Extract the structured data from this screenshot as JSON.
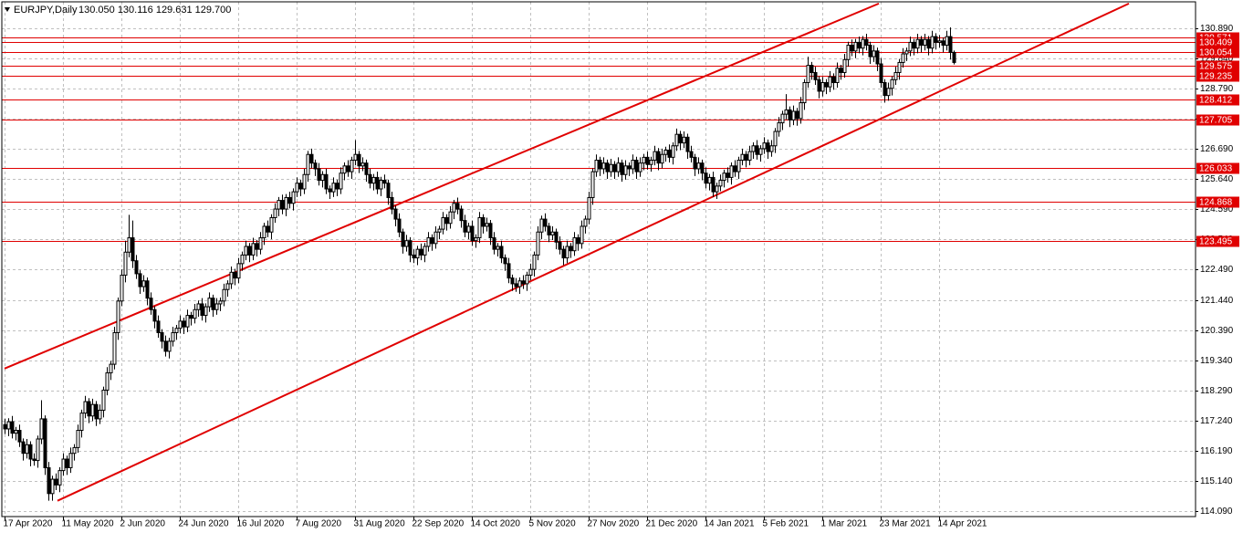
{
  "chart_data": {
    "type": "candlestick",
    "title": "EURJPY,Daily",
    "quote": "130.050 130.116 129.631 129.700",
    "grid": true,
    "color": "#000000",
    "level_color": "#e00000",
    "xlim": [
      -0.75,
      326.25
    ],
    "ylim": [
      113.9,
      131.81
    ],
    "yticks": [
      {
        "value": 130.89,
        "label": "130.890"
      },
      {
        "value": 129.84,
        "label": "129.840"
      },
      {
        "value": 128.79,
        "label": "128.790"
      },
      {
        "value": 127.74,
        "label": "127.740"
      },
      {
        "value": 126.69,
        "label": "126.690"
      },
      {
        "value": 125.64,
        "label": "125.640"
      },
      {
        "value": 124.59,
        "label": "124.590"
      },
      {
        "value": 123.54,
        "label": "123.540"
      },
      {
        "value": 122.49,
        "label": "122.490"
      },
      {
        "value": 121.44,
        "label": "121.440"
      },
      {
        "value": 120.39,
        "label": "120.390"
      },
      {
        "value": 119.34,
        "label": "119.340"
      },
      {
        "value": 118.29,
        "label": "118.290"
      },
      {
        "value": 117.24,
        "label": "117.240"
      },
      {
        "value": 116.19,
        "label": "116.190"
      },
      {
        "value": 115.14,
        "label": "115.140"
      },
      {
        "value": 114.09,
        "label": "114.090"
      }
    ],
    "xticks": [
      {
        "value": 0,
        "label": "17 Apr 2020"
      },
      {
        "value": 16,
        "label": "11 May 2020"
      },
      {
        "value": 32,
        "label": "2 Jun 2020"
      },
      {
        "value": 48,
        "label": "24 Jun 2020"
      },
      {
        "value": 64,
        "label": "16 Jul 2020"
      },
      {
        "value": 80,
        "label": "7 Aug 2020"
      },
      {
        "value": 96,
        "label": "31 Aug 2020"
      },
      {
        "value": 112,
        "label": "22 Sep 2020"
      },
      {
        "value": 128,
        "label": "14 Oct 2020"
      },
      {
        "value": 144,
        "label": "5 Nov 2020"
      },
      {
        "value": 160,
        "label": "27 Nov 2020"
      },
      {
        "value": 176,
        "label": "21 Dec 2020"
      },
      {
        "value": 192,
        "label": "14 Jan 2021"
      },
      {
        "value": 208,
        "label": "5 Feb 2021"
      },
      {
        "value": 224,
        "label": "1 Mar 2021"
      },
      {
        "value": 240,
        "label": "23 Mar 2021"
      },
      {
        "value": 256,
        "label": "14 Apr 2021"
      }
    ],
    "levels": [
      130.571,
      130.409,
      130.054,
      129.575,
      129.235,
      128.412,
      127.705,
      126.033,
      124.868,
      123.495
    ],
    "trendlines": [
      {
        "x": [
          0,
          239.5
        ],
        "values": [
          119.05,
          131.75
        ]
      },
      {
        "x": [
          14.5,
          308
        ],
        "values": [
          114.45,
          131.75
        ]
      }
    ],
    "open": [
      117.1,
      116.95,
      117.2,
      116.8,
      116.9,
      116.5,
      116.1,
      116.4,
      115.9,
      115.85,
      116.6,
      117.3,
      115.6,
      114.7,
      115.2,
      115.0,
      115.5,
      115.9,
      115.6,
      116.1,
      116.3,
      116.9,
      117.5,
      117.9,
      117.4,
      117.8,
      117.3,
      117.6,
      118.3,
      118.9,
      119.2,
      120.3,
      121.4,
      122.3,
      123.1,
      123.6,
      122.8,
      122.35,
      121.9,
      122.1,
      121.5,
      121.1,
      120.7,
      120.3,
      120.0,
      119.65,
      120.0,
      120.3,
      120.45,
      120.7,
      120.5,
      120.9,
      120.8,
      121.1,
      121.3,
      120.9,
      121.2,
      121.5,
      121.1,
      121.3,
      121.4,
      121.8,
      122.0,
      122.4,
      122.2,
      122.7,
      123.0,
      123.3,
      123.0,
      123.4,
      123.2,
      123.6,
      124.0,
      123.8,
      124.3,
      124.6,
      124.9,
      124.6,
      125.0,
      124.8,
      125.2,
      125.5,
      125.3,
      125.8,
      126.5,
      126.2,
      126.0,
      125.6,
      125.8,
      125.3,
      125.2,
      125.5,
      125.3,
      125.85,
      126.1,
      125.9,
      126.3,
      126.5,
      126.1,
      126.2,
      125.8,
      125.5,
      125.7,
      125.3,
      125.6,
      125.5,
      125.0,
      124.6,
      124.25,
      123.8,
      123.3,
      123.5,
      123.0,
      122.9,
      123.2,
      123.0,
      123.3,
      123.6,
      123.4,
      123.8,
      123.9,
      124.3,
      124.1,
      124.5,
      124.8,
      124.6,
      124.2,
      123.8,
      124.0,
      123.5,
      123.6,
      124.3,
      124.0,
      124.1,
      123.6,
      123.2,
      123.3,
      122.9,
      122.7,
      122.2,
      122.0,
      121.9,
      122.1,
      122.0,
      122.3,
      122.5,
      123.0,
      123.8,
      124.25,
      124.0,
      123.7,
      123.8,
      123.45,
      123.2,
      122.9,
      123.3,
      123.15,
      123.6,
      123.4,
      124.0,
      124.25,
      125.0,
      125.9,
      126.3,
      126.0,
      126.2,
      125.9,
      126.15,
      125.9,
      126.2,
      125.8,
      126.1,
      126.0,
      126.3,
      125.9,
      126.2,
      126.4,
      126.15,
      126.3,
      126.6,
      126.2,
      126.5,
      126.65,
      126.4,
      126.8,
      127.2,
      126.9,
      127.1,
      126.6,
      126.4,
      126.0,
      126.2,
      125.85,
      125.5,
      125.7,
      125.2,
      125.4,
      125.6,
      125.85,
      125.7,
      126.1,
      125.9,
      126.3,
      126.5,
      126.3,
      126.6,
      126.8,
      126.5,
      126.7,
      126.9,
      126.6,
      126.8,
      127.3,
      127.6,
      127.9,
      128.05,
      127.7,
      128.0,
      127.75,
      128.3,
      129.0,
      129.6,
      129.35,
      129.1,
      128.7,
      129.0,
      128.85,
      129.2,
      129.0,
      129.5,
      129.35,
      129.8,
      130.3,
      130.1,
      130.4,
      130.2,
      130.5,
      130.3,
      129.9,
      130.1,
      129.65,
      129.0,
      128.55,
      128.8,
      129.1,
      129.35,
      129.7,
      130.0,
      130.1,
      130.4,
      130.2,
      130.5,
      130.3,
      130.5,
      130.2,
      130.6,
      130.4,
      130.45,
      130.3,
      130.6,
      130.05
    ],
    "high": [
      117.3,
      117.32,
      117.4,
      117.02,
      117.1,
      116.62,
      116.6,
      116.52,
      116.1,
      116.72,
      117.95,
      117.42,
      115.8,
      115.32,
      115.4,
      115.62,
      116.1,
      116.02,
      116.3,
      116.42,
      117.1,
      117.62,
      118.1,
      118.02,
      118.0,
      117.92,
      117.8,
      118.42,
      119.1,
      119.32,
      120.5,
      121.52,
      122.5,
      123.5,
      124.4,
      124.2,
      123.0,
      122.47,
      122.3,
      122.22,
      121.7,
      121.22,
      120.9,
      120.42,
      120.2,
      120.12,
      120.5,
      120.57,
      120.9,
      120.82,
      121.1,
      121.02,
      121.3,
      121.42,
      121.5,
      121.32,
      121.7,
      121.62,
      121.5,
      121.52,
      122.0,
      122.12,
      122.6,
      122.52,
      122.9,
      123.12,
      123.5,
      123.42,
      123.6,
      123.52,
      123.8,
      124.12,
      124.2,
      124.42,
      124.8,
      125.02,
      125.1,
      125.12,
      125.2,
      125.32,
      125.7,
      125.62,
      126.0,
      126.62,
      126.7,
      126.32,
      126.2,
      125.92,
      126.0,
      125.42,
      125.7,
      125.62,
      126.05,
      126.22,
      126.3,
      126.42,
      127.0,
      126.62,
      126.4,
      126.32,
      126.0,
      125.82,
      125.9,
      125.72,
      125.8,
      125.62,
      125.2,
      124.72,
      124.45,
      123.92,
      123.7,
      123.62,
      123.2,
      123.32,
      123.4,
      123.42,
      123.8,
      123.72,
      124.0,
      124.02,
      124.5,
      124.42,
      124.7,
      124.92,
      125.0,
      124.72,
      124.4,
      124.12,
      124.2,
      123.72,
      124.5,
      124.42,
      124.3,
      124.22,
      123.8,
      123.42,
      123.5,
      123.02,
      122.9,
      122.32,
      122.2,
      122.22,
      122.3,
      122.42,
      122.7,
      123.12,
      124.0,
      124.37,
      124.45,
      124.12,
      124.0,
      123.92,
      123.65,
      123.32,
      123.5,
      123.42,
      123.8,
      123.72,
      124.2,
      124.37,
      125.2,
      126.02,
      126.5,
      126.42,
      126.4,
      126.32,
      126.35,
      126.27,
      126.4,
      126.32,
      126.3,
      126.22,
      126.5,
      126.42,
      126.4,
      126.52,
      126.6,
      126.42,
      126.8,
      126.72,
      126.7,
      126.77,
      126.85,
      126.92,
      127.4,
      127.32,
      127.3,
      127.22,
      126.8,
      126.52,
      126.4,
      126.32,
      126.05,
      125.82,
      125.9,
      125.52,
      125.8,
      125.97,
      126.05,
      126.22,
      126.3,
      126.42,
      126.7,
      126.62,
      126.8,
      126.92,
      127.0,
      126.82,
      127.1,
      127.02,
      127.0,
      127.42,
      127.8,
      128.02,
      128.6,
      128.17,
      128.2,
      128.12,
      128.5,
      129.12,
      129.9,
      129.72,
      129.55,
      129.22,
      129.2,
      129.12,
      129.4,
      129.32,
      129.7,
      129.62,
      130.0,
      130.42,
      130.5,
      130.52,
      130.6,
      130.62,
      130.7,
      130.42,
      130.3,
      130.22,
      129.85,
      129.12,
      129.0,
      129.22,
      129.55,
      129.82,
      130.2,
      130.22,
      130.6,
      130.52,
      130.7,
      130.62,
      130.7,
      130.62,
      130.8,
      130.72,
      130.65,
      130.57,
      130.8,
      130.92,
      130.116
    ],
    "low": [
      116.77,
      116.7,
      116.62,
      116.55,
      116.32,
      115.85,
      115.92,
      115.65,
      115.67,
      115.6,
      116.42,
      115.35,
      114.45,
      114.45,
      114.82,
      114.75,
      115.32,
      115.35,
      115.42,
      115.85,
      116.12,
      116.65,
      117.32,
      117.15,
      117.22,
      117.05,
      117.12,
      117.35,
      118.12,
      118.65,
      119.02,
      120.05,
      121.22,
      122.05,
      122.92,
      122.55,
      122.17,
      121.65,
      121.72,
      121.25,
      120.92,
      120.45,
      120.12,
      119.75,
      119.47,
      119.4,
      119.82,
      120.05,
      120.27,
      120.25,
      120.32,
      120.55,
      120.62,
      120.85,
      120.72,
      120.65,
      121.02,
      120.85,
      120.92,
      121.05,
      121.22,
      121.55,
      121.82,
      121.95,
      122.02,
      122.45,
      122.82,
      122.75,
      122.82,
      122.95,
      123.02,
      123.35,
      123.62,
      123.55,
      124.12,
      124.35,
      124.42,
      124.35,
      124.62,
      124.55,
      125.02,
      125.05,
      125.12,
      125.55,
      126.02,
      125.75,
      125.42,
      125.35,
      125.12,
      124.95,
      125.02,
      125.05,
      125.12,
      125.6,
      125.72,
      125.65,
      126.12,
      125.85,
      125.92,
      125.55,
      125.32,
      125.25,
      125.12,
      125.05,
      125.32,
      124.75,
      124.42,
      124.0,
      123.62,
      123.05,
      123.12,
      122.75,
      122.72,
      122.65,
      122.82,
      122.75,
      123.12,
      123.15,
      123.22,
      123.55,
      123.72,
      123.85,
      123.92,
      124.25,
      124.42,
      123.95,
      123.62,
      123.55,
      123.32,
      123.25,
      123.42,
      123.75,
      123.82,
      123.35,
      123.02,
      122.95,
      122.72,
      122.45,
      122.02,
      121.75,
      121.72,
      121.65,
      121.82,
      121.75,
      122.12,
      122.25,
      122.82,
      123.55,
      123.82,
      123.45,
      123.52,
      123.2,
      123.02,
      122.65,
      122.72,
      122.9,
      122.97,
      123.15,
      123.22,
      123.75,
      124.07,
      124.75,
      125.72,
      125.75,
      125.82,
      125.65,
      125.72,
      125.65,
      125.72,
      125.55,
      125.62,
      125.75,
      125.82,
      125.65,
      125.72,
      125.95,
      125.97,
      125.9,
      126.12,
      125.95,
      126.02,
      126.25,
      126.22,
      126.15,
      126.62,
      126.65,
      126.72,
      126.35,
      126.22,
      125.75,
      125.82,
      125.6,
      125.32,
      125.25,
      125.02,
      124.95,
      125.22,
      125.35,
      125.52,
      125.45,
      125.72,
      125.65,
      126.12,
      126.05,
      126.12,
      126.35,
      126.32,
      126.25,
      126.52,
      126.35,
      126.42,
      126.55,
      127.12,
      127.35,
      127.72,
      127.45,
      127.52,
      127.5,
      127.57,
      128.05,
      128.82,
      129.1,
      128.92,
      128.45,
      128.52,
      128.6,
      128.67,
      128.75,
      128.82,
      129.1,
      129.17,
      129.55,
      129.92,
      129.85,
      130.02,
      129.95,
      130.12,
      129.65,
      129.72,
      129.4,
      128.82,
      128.3,
      128.37,
      128.55,
      128.92,
      129.1,
      129.52,
      129.75,
      129.92,
      129.95,
      130.02,
      130.05,
      130.12,
      129.95,
      130.02,
      130.15,
      130.22,
      130.05,
      130.12,
      129.8,
      129.631
    ],
    "close": [
      116.95,
      117.2,
      116.8,
      116.9,
      116.5,
      116.1,
      116.4,
      115.9,
      115.85,
      116.6,
      117.3,
      115.6,
      114.7,
      115.2,
      115.0,
      115.5,
      115.9,
      115.6,
      116.1,
      116.3,
      116.9,
      117.5,
      117.9,
      117.4,
      117.8,
      117.3,
      117.6,
      118.3,
      118.9,
      119.2,
      120.3,
      121.4,
      122.3,
      123.1,
      123.6,
      122.8,
      122.35,
      121.9,
      122.1,
      121.5,
      121.1,
      120.7,
      120.3,
      120.0,
      119.65,
      120.0,
      120.3,
      120.45,
      120.7,
      120.5,
      120.9,
      120.8,
      121.1,
      121.3,
      120.9,
      121.2,
      121.5,
      121.1,
      121.3,
      121.4,
      121.8,
      122.0,
      122.4,
      122.2,
      122.7,
      123.0,
      123.3,
      123.0,
      123.4,
      123.2,
      123.6,
      124.0,
      123.8,
      124.3,
      124.6,
      124.9,
      124.6,
      125.0,
      124.8,
      125.2,
      125.5,
      125.3,
      125.8,
      126.5,
      126.2,
      126.0,
      125.6,
      125.8,
      125.3,
      125.2,
      125.5,
      125.3,
      125.85,
      126.1,
      125.9,
      126.3,
      126.5,
      126.1,
      126.2,
      125.8,
      125.5,
      125.7,
      125.3,
      125.6,
      125.5,
      125.0,
      124.6,
      124.25,
      123.8,
      123.3,
      123.5,
      123.0,
      122.9,
      123.2,
      123.0,
      123.3,
      123.6,
      123.4,
      123.8,
      123.9,
      124.3,
      124.1,
      124.5,
      124.8,
      124.6,
      124.2,
      123.8,
      124.0,
      123.5,
      123.6,
      124.3,
      124.0,
      124.1,
      123.6,
      123.2,
      123.3,
      122.9,
      122.7,
      122.2,
      122.0,
      121.9,
      122.1,
      122.0,
      122.3,
      122.5,
      123.0,
      123.8,
      124.25,
      124.0,
      123.7,
      123.8,
      123.45,
      123.2,
      122.9,
      123.3,
      123.15,
      123.6,
      123.4,
      124.0,
      124.25,
      125.0,
      125.9,
      126.3,
      126.0,
      126.2,
      125.9,
      126.15,
      125.9,
      126.2,
      125.8,
      126.1,
      126.0,
      126.3,
      125.9,
      126.2,
      126.4,
      126.15,
      126.3,
      126.6,
      126.2,
      126.5,
      126.65,
      126.4,
      126.8,
      127.2,
      126.9,
      127.1,
      126.6,
      126.4,
      126.0,
      126.2,
      125.85,
      125.5,
      125.7,
      125.2,
      125.4,
      125.6,
      125.85,
      125.7,
      126.1,
      125.9,
      126.3,
      126.5,
      126.3,
      126.6,
      126.8,
      126.5,
      126.7,
      126.9,
      126.6,
      126.8,
      127.3,
      127.6,
      127.9,
      128.05,
      127.7,
      128.0,
      127.75,
      128.3,
      129.0,
      129.6,
      129.35,
      129.1,
      128.7,
      129.0,
      128.85,
      129.2,
      129.0,
      129.5,
      129.35,
      129.8,
      130.3,
      130.1,
      130.4,
      130.2,
      130.5,
      130.3,
      129.9,
      130.1,
      129.65,
      129.0,
      128.55,
      128.8,
      129.1,
      129.35,
      129.7,
      130.0,
      130.1,
      130.4,
      130.2,
      130.5,
      130.3,
      130.5,
      130.2,
      130.6,
      130.4,
      130.45,
      130.3,
      130.6,
      130.05,
      129.7
    ]
  }
}
